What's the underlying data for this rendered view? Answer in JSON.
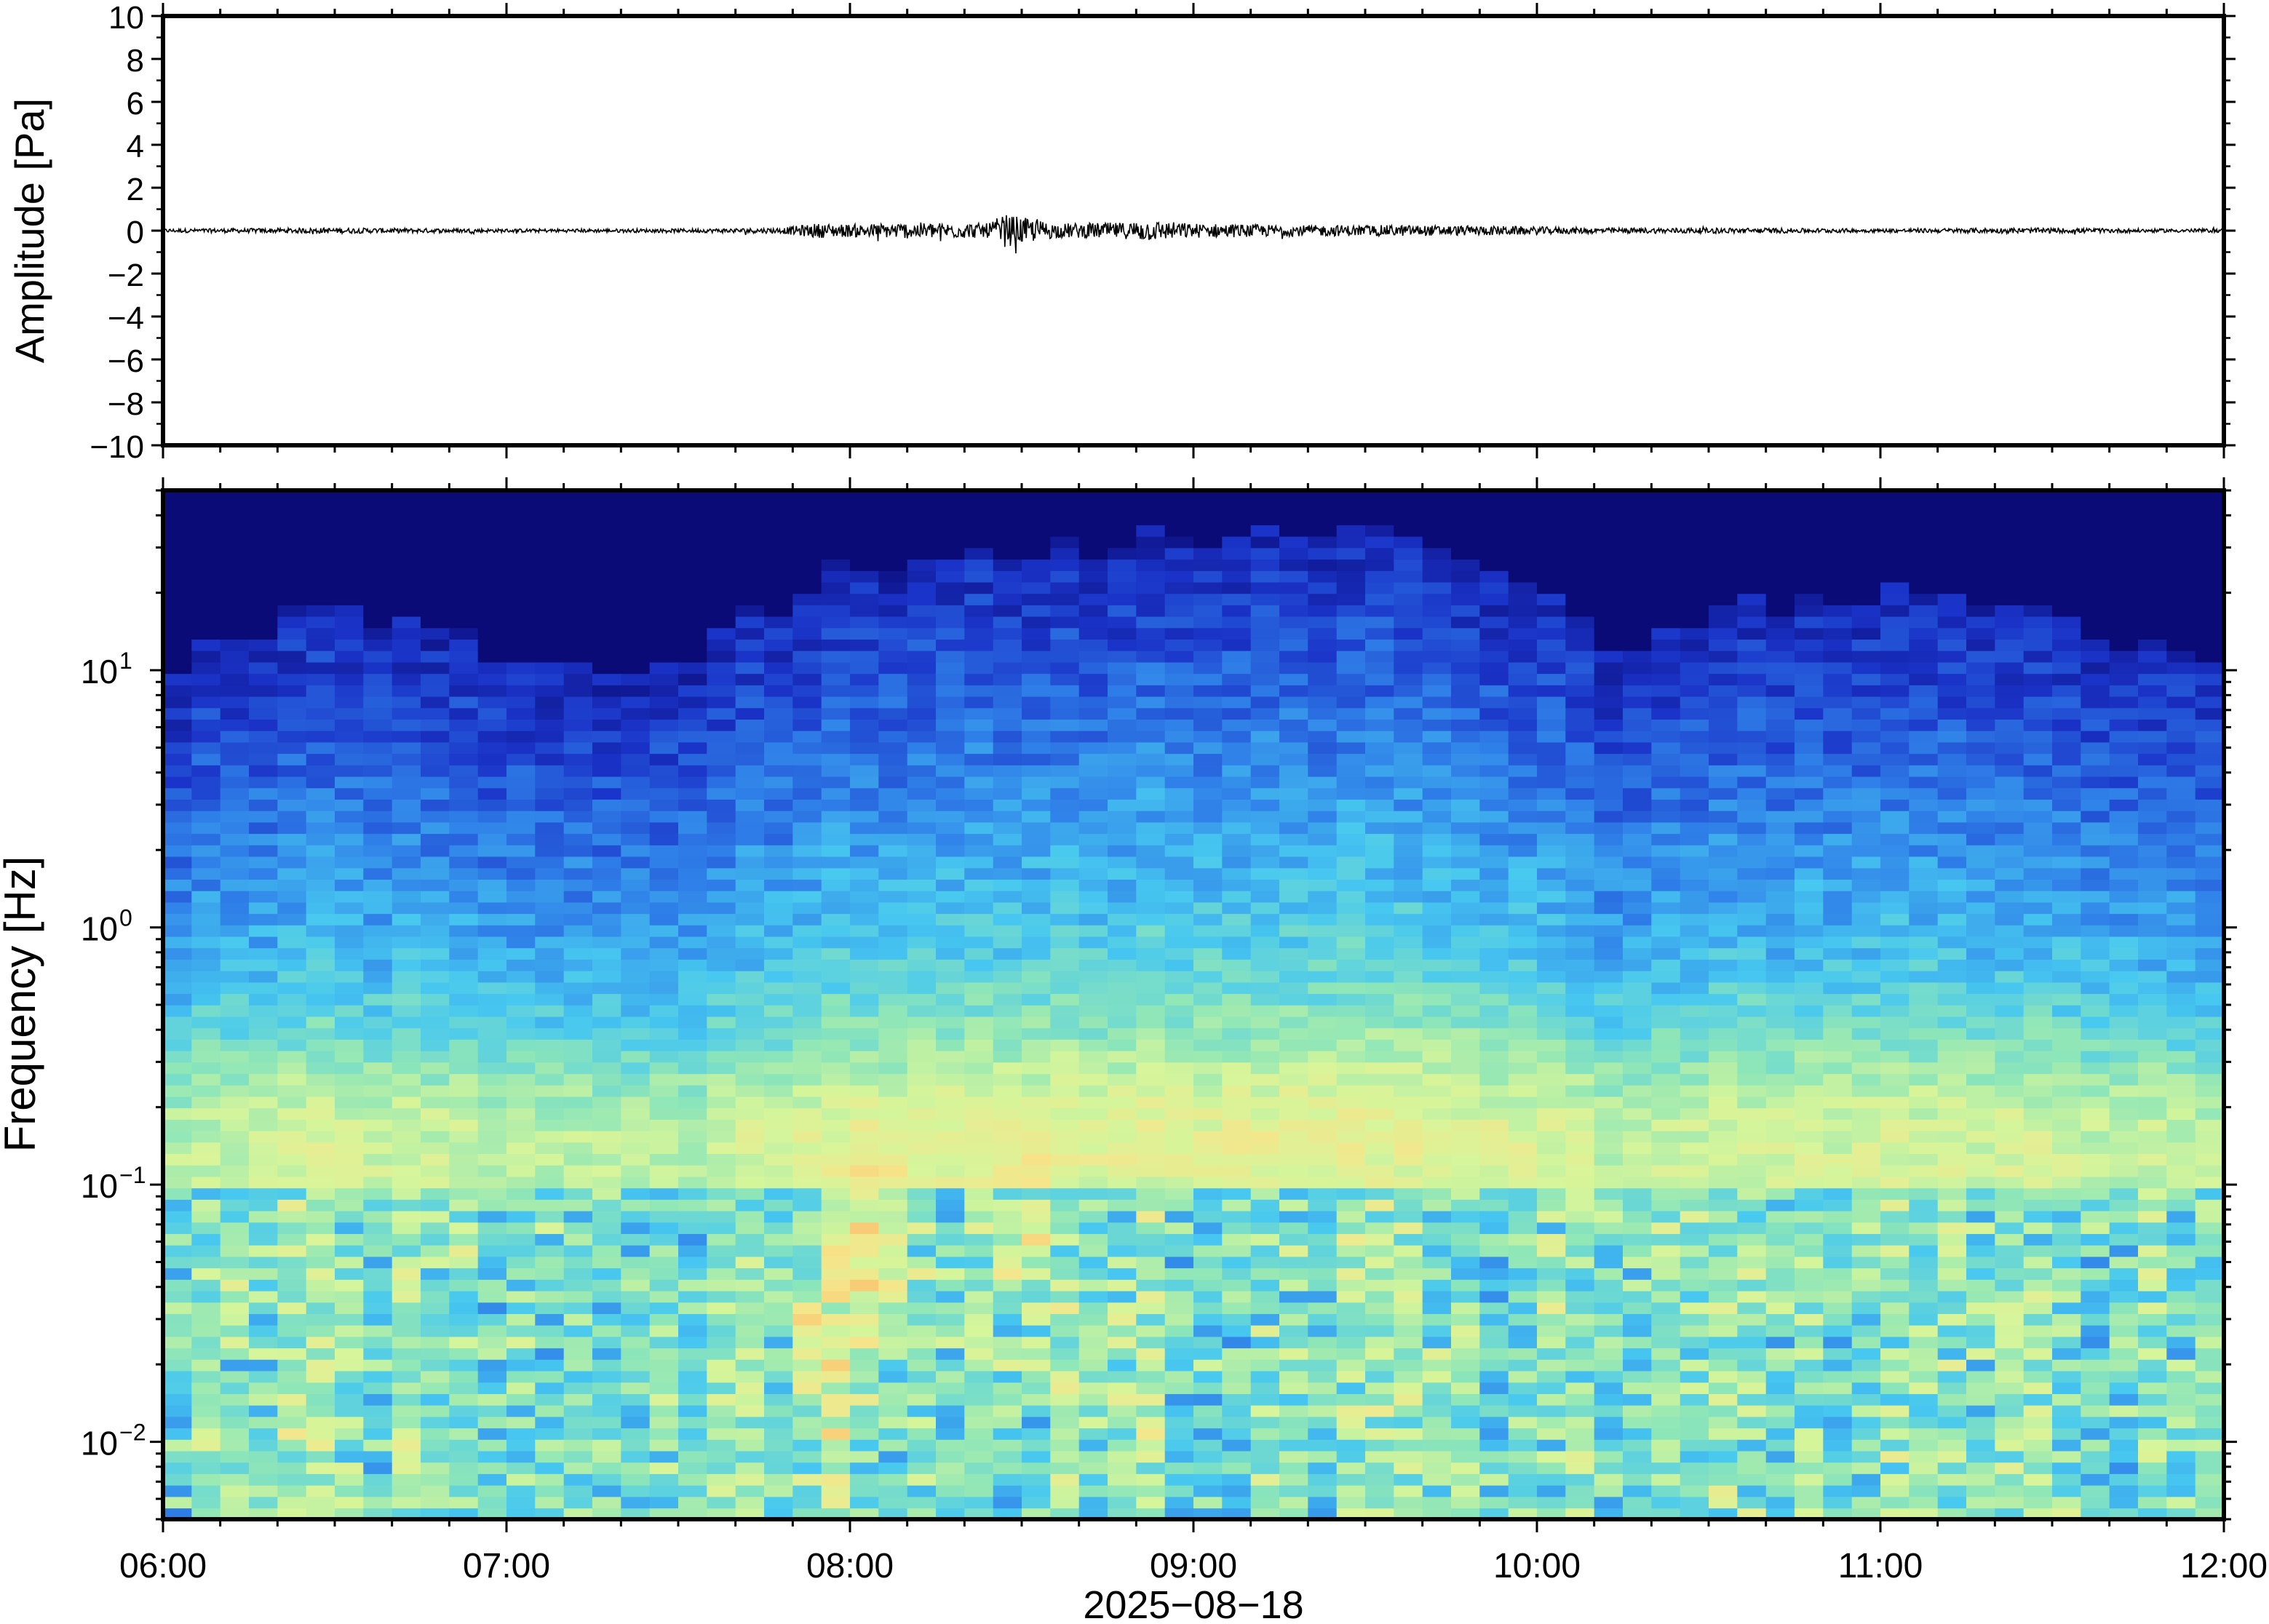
{
  "chart_data": [
    {
      "type": "line",
      "panel": "waveform",
      "xlabel": "2025−08−18",
      "ylabel": "Amplitude [Pa]",
      "ylim": [
        -10,
        10
      ],
      "y_ticks": [
        10,
        8,
        6,
        4,
        2,
        0,
        -2,
        -4,
        -6,
        -8,
        -10
      ],
      "y_tick_labels": [
        "10",
        "8",
        "6",
        "4",
        "2",
        "0",
        "−2",
        "−4",
        "−6",
        "−8",
        "−10"
      ],
      "x_range": [
        "06:00",
        "12:00"
      ],
      "grid": false,
      "series": [
        {
          "color": "#000000",
          "x_hours": [
            6.0,
            6.5,
            7.0,
            7.5,
            7.8,
            7.9,
            8.0,
            8.2,
            8.4,
            8.45,
            8.6,
            8.8,
            8.85,
            9.0,
            9.3,
            9.6,
            9.9,
            10.2,
            10.6,
            11.0,
            11.4,
            11.8,
            12.0
          ],
          "envelope_pa": [
            0.1,
            0.15,
            0.1,
            0.1,
            0.15,
            0.4,
            0.35,
            0.45,
            0.4,
            0.9,
            0.4,
            0.45,
            0.6,
            0.4,
            0.3,
            0.3,
            0.25,
            0.15,
            0.15,
            0.1,
            0.15,
            0.1,
            0.1
          ]
        }
      ]
    },
    {
      "type": "heatmap",
      "panel": "spectrogram",
      "xlabel": "2025−08−18",
      "ylabel": "Frequency [Hz]",
      "y_scale": "log",
      "ylim_hz": [
        0.005,
        50
      ],
      "y_ticks_hz": [
        10,
        1,
        0.1,
        0.01
      ],
      "y_tick_labels": [
        {
          "base": "10",
          "exp": "1"
        },
        {
          "base": "10",
          "exp": "0"
        },
        {
          "base": "10",
          "exp": "−1"
        },
        {
          "base": "10",
          "exp": "−2"
        }
      ],
      "x_ticks": [
        "06:00",
        "07:00",
        "08:00",
        "09:00",
        "10:00",
        "11:00",
        "12:00"
      ],
      "colormap": [
        "#0b0b78",
        "#1a33c8",
        "#2f7fe8",
        "#47c8f0",
        "#8ee6b8",
        "#d6f59a",
        "#f6e58a",
        "#f9b563",
        "#f5883d"
      ],
      "grid": false,
      "x_hours": [
        6.0,
        6.5,
        7.0,
        7.5,
        7.7,
        8.0,
        8.5,
        9.0,
        9.5,
        9.9,
        10.2,
        10.6,
        11.0,
        11.4,
        11.8,
        12.0
      ],
      "energy_top_hz": [
        7,
        12,
        8,
        7,
        11,
        17,
        22,
        24,
        24,
        18,
        9,
        12,
        14,
        12,
        9,
        8
      ],
      "hot_spots": [
        {
          "time": "08:05",
          "freq_hz": 0.05,
          "level": "high"
        },
        {
          "time": "08:30",
          "freq_hz": 0.05,
          "level": "high"
        },
        {
          "time": "07:55",
          "freq_hz": 0.02,
          "level": "high"
        },
        {
          "time": "08:45",
          "freq_hz": 0.02,
          "level": "medium"
        }
      ]
    }
  ]
}
